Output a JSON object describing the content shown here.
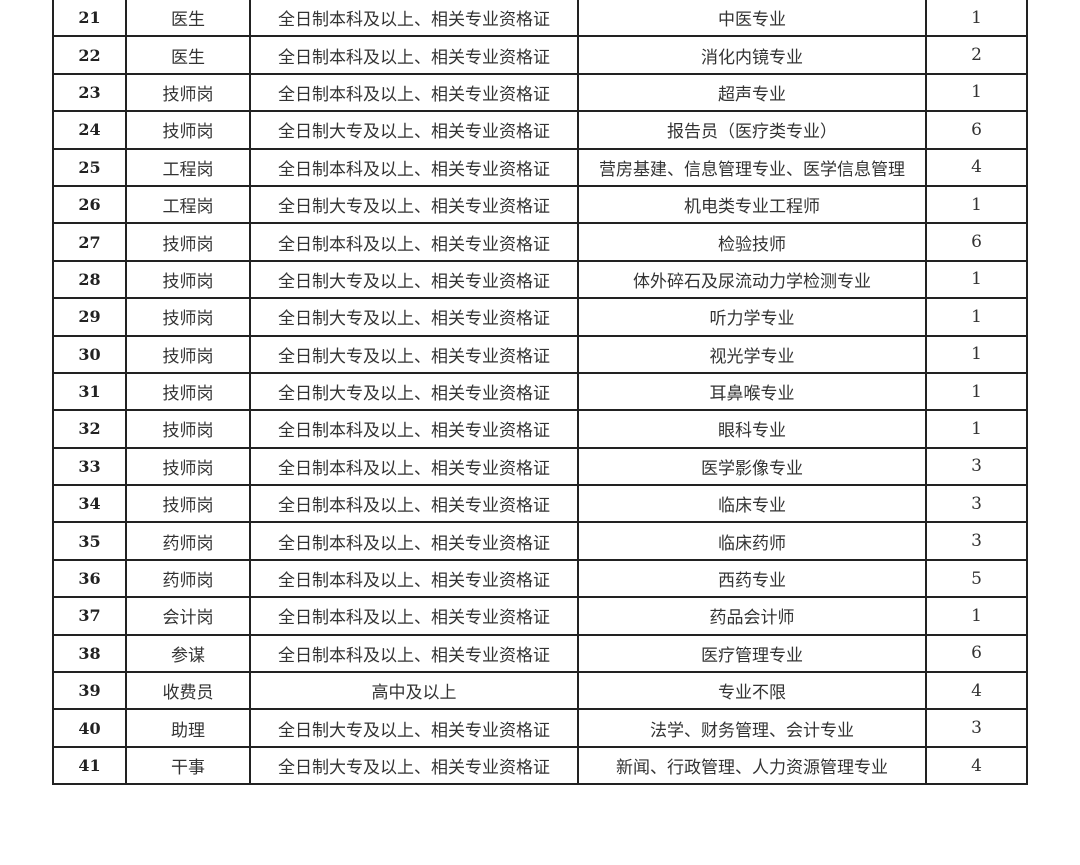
{
  "table": {
    "rows": [
      {
        "no": "21",
        "position": "医生",
        "education": "全日制本科及以上、相关专业资格证",
        "major": "中医专业",
        "count": "1"
      },
      {
        "no": "22",
        "position": "医生",
        "education": "全日制本科及以上、相关专业资格证",
        "major": "消化内镜专业",
        "count": "2"
      },
      {
        "no": "23",
        "position": "技师岗",
        "education": "全日制本科及以上、相关专业资格证",
        "major": "超声专业",
        "count": "1"
      },
      {
        "no": "24",
        "position": "技师岗",
        "education": "全日制大专及以上、相关专业资格证",
        "major": "报告员（医疗类专业）",
        "count": "6"
      },
      {
        "no": "25",
        "position": "工程岗",
        "education": "全日制本科及以上、相关专业资格证",
        "major": "营房基建、信息管理专业、医学信息管理",
        "count": "4"
      },
      {
        "no": "26",
        "position": "工程岗",
        "education": "全日制大专及以上、相关专业资格证",
        "major": "机电类专业工程师",
        "count": "1"
      },
      {
        "no": "27",
        "position": "技师岗",
        "education": "全日制本科及以上、相关专业资格证",
        "major": "检验技师",
        "count": "6"
      },
      {
        "no": "28",
        "position": "技师岗",
        "education": "全日制大专及以上、相关专业资格证",
        "major": "体外碎石及尿流动力学检测专业",
        "count": "1"
      },
      {
        "no": "29",
        "position": "技师岗",
        "education": "全日制大专及以上、相关专业资格证",
        "major": "听力学专业",
        "count": "1"
      },
      {
        "no": "30",
        "position": "技师岗",
        "education": "全日制大专及以上、相关专业资格证",
        "major": "视光学专业",
        "count": "1"
      },
      {
        "no": "31",
        "position": "技师岗",
        "education": "全日制大专及以上、相关专业资格证",
        "major": "耳鼻喉专业",
        "count": "1"
      },
      {
        "no": "32",
        "position": "技师岗",
        "education": "全日制本科及以上、相关专业资格证",
        "major": "眼科专业",
        "count": "1"
      },
      {
        "no": "33",
        "position": "技师岗",
        "education": "全日制本科及以上、相关专业资格证",
        "major": "医学影像专业",
        "count": "3"
      },
      {
        "no": "34",
        "position": "技师岗",
        "education": "全日制本科及以上、相关专业资格证",
        "major": "临床专业",
        "count": "3"
      },
      {
        "no": "35",
        "position": "药师岗",
        "education": "全日制本科及以上、相关专业资格证",
        "major": "临床药师",
        "count": "3"
      },
      {
        "no": "36",
        "position": "药师岗",
        "education": "全日制本科及以上、相关专业资格证",
        "major": "西药专业",
        "count": "5"
      },
      {
        "no": "37",
        "position": "会计岗",
        "education": "全日制本科及以上、相关专业资格证",
        "major": "药品会计师",
        "count": "1"
      },
      {
        "no": "38",
        "position": "参谋",
        "education": "全日制本科及以上、相关专业资格证",
        "major": "医疗管理专业",
        "count": "6"
      },
      {
        "no": "39",
        "position": "收费员",
        "education": "高中及以上",
        "major": "专业不限",
        "count": "4"
      },
      {
        "no": "40",
        "position": "助理",
        "education": "全日制大专及以上、相关专业资格证",
        "major": "法学、财务管理、会计专业",
        "count": "3"
      },
      {
        "no": "41",
        "position": "干事",
        "education": "全日制大专及以上、相关专业资格证",
        "major": "新闻、行政管理、人力资源管理专业",
        "count": "4"
      }
    ]
  }
}
